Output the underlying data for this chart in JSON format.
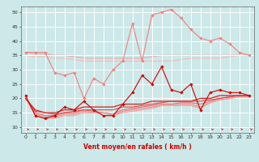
{
  "title": "",
  "xlabel": "Vent moyen/en rafales ( km/h )",
  "ylabel": "",
  "bg_color": "#cce8e8",
  "grid_color": "#ffffff",
  "xlim": [
    -0.5,
    23.5
  ],
  "ylim": [
    8,
    52
  ],
  "yticks": [
    10,
    15,
    20,
    25,
    30,
    35,
    40,
    45,
    50
  ],
  "xticks": [
    0,
    1,
    2,
    3,
    4,
    5,
    6,
    7,
    8,
    9,
    10,
    11,
    12,
    13,
    14,
    15,
    16,
    17,
    18,
    19,
    20,
    21,
    22,
    23
  ],
  "x": [
    0,
    1,
    2,
    3,
    4,
    5,
    6,
    7,
    8,
    9,
    10,
    11,
    12,
    13,
    14,
    15,
    16,
    17,
    18,
    19,
    20,
    21,
    22,
    23
  ],
  "series": [
    {
      "y": [
        36,
        36,
        36,
        29,
        28,
        29,
        20,
        27,
        25,
        30,
        33,
        46,
        33,
        49,
        50,
        51,
        48,
        44,
        41,
        40,
        41,
        39,
        36,
        35
      ],
      "color": "#f08080",
      "marker": "D",
      "markersize": 1.8,
      "linewidth": 0.8,
      "zorder": 2
    },
    {
      "y": [
        36,
        35.5,
        35.5,
        35,
        35,
        34.5,
        34,
        34,
        34,
        34,
        34,
        34,
        34,
        34.5,
        35,
        35,
        35,
        35,
        35,
        35,
        35,
        35,
        35,
        35
      ],
      "color": "#e8b0b0",
      "marker": null,
      "linewidth": 1.0,
      "zorder": 1
    },
    {
      "y": [
        35,
        34.5,
        34.5,
        34,
        34,
        33.5,
        33,
        33,
        33,
        33,
        33,
        33,
        33,
        33,
        33,
        33,
        33.5,
        34,
        34,
        34,
        34,
        34.5,
        35,
        35
      ],
      "color": "#ecc0c0",
      "marker": null,
      "linewidth": 1.0,
      "zorder": 1
    },
    {
      "y": [
        21,
        14,
        13,
        14,
        17,
        16,
        19,
        16,
        14,
        14,
        18,
        22,
        28,
        25,
        31,
        23,
        22,
        25,
        16,
        22,
        23,
        22,
        22,
        21
      ],
      "color": "#cc0000",
      "marker": "D",
      "markersize": 1.8,
      "linewidth": 0.8,
      "zorder": 4
    },
    {
      "y": [
        20,
        16,
        15,
        15,
        16,
        16,
        17,
        17,
        17,
        17,
        18,
        18,
        18,
        19,
        19,
        19,
        19,
        19,
        20,
        20,
        21,
        21,
        21,
        21
      ],
      "color": "#cc2222",
      "marker": null,
      "linewidth": 0.9,
      "zorder": 3
    },
    {
      "y": [
        20,
        15.5,
        15,
        14.5,
        15,
        15.5,
        16,
        16,
        16,
        16,
        17,
        17,
        17.5,
        18,
        18.5,
        19,
        19,
        19,
        19,
        19.5,
        20,
        20.5,
        21,
        21
      ],
      "color": "#dd4444",
      "marker": null,
      "linewidth": 0.8,
      "zorder": 3
    },
    {
      "y": [
        20,
        15,
        14,
        14,
        15,
        15,
        16,
        15.5,
        15,
        14.5,
        16,
        16.5,
        17,
        17.5,
        18,
        18,
        18.5,
        18.5,
        18,
        19,
        20,
        20.5,
        21,
        21
      ],
      "color": "#ee6666",
      "marker": null,
      "linewidth": 0.8,
      "zorder": 2
    },
    {
      "y": [
        20,
        14.5,
        13.5,
        13.5,
        14.5,
        14.5,
        15.5,
        15,
        15,
        14,
        15.5,
        16,
        16.5,
        17,
        17.5,
        17.5,
        18,
        18,
        17,
        18.5,
        19.5,
        20,
        20.5,
        20.5
      ],
      "color": "#ee8888",
      "marker": null,
      "linewidth": 0.8,
      "zorder": 2
    },
    {
      "y": [
        20,
        14,
        13,
        13,
        14,
        14,
        15,
        15,
        15,
        14,
        15,
        15.5,
        16,
        16.5,
        17.5,
        17.5,
        17.5,
        17.5,
        16.5,
        18.5,
        19.5,
        20,
        20.5,
        20.5
      ],
      "color": "#f0a0a0",
      "marker": null,
      "linewidth": 0.8,
      "zorder": 2
    }
  ],
  "arrow_color": "#cc3333",
  "xlabel_color": "#cc0000",
  "xlabel_size": 5.5
}
